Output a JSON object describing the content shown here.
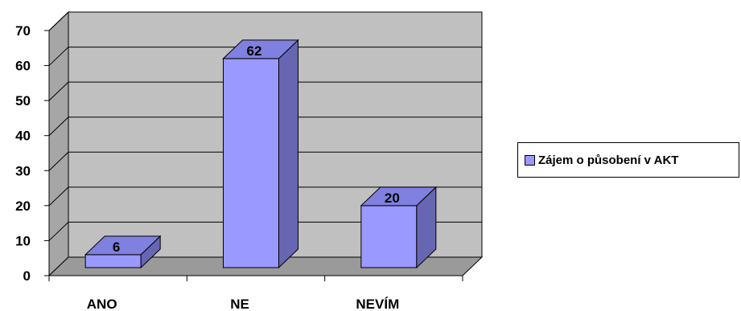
{
  "chart_data": {
    "type": "bar",
    "categories": [
      "ANO",
      "NE",
      "NEVÍM"
    ],
    "series": [
      {
        "name": "Zájem o působení v AKT",
        "values": [
          6,
          62,
          20
        ]
      }
    ],
    "data_labels": [
      "6",
      "62",
      "20"
    ],
    "y_ticks": [
      "0",
      "10",
      "20",
      "30",
      "40",
      "50",
      "60",
      "70"
    ],
    "ylim": [
      0,
      70
    ],
    "grid": true,
    "legend_position": "right",
    "colors": {
      "bar_front": "#9999ff",
      "bar_side": "#6666b3",
      "bar_top": "#8080e0",
      "wall": "#c0c0c0",
      "floor": "#9a9a9a"
    }
  }
}
